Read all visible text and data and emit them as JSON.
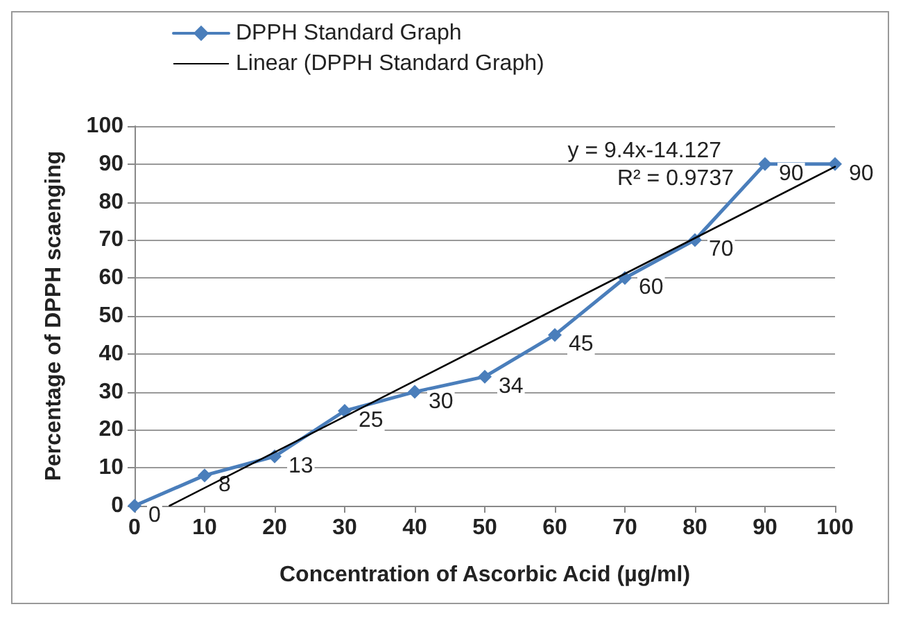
{
  "chart_data": {
    "type": "line",
    "xlabel": "Concentration of Ascorbic Acid (µg/ml)",
    "ylabel": "Percentage of DPPH scaenging",
    "x": [
      0,
      10,
      20,
      30,
      40,
      50,
      60,
      70,
      80,
      90,
      100
    ],
    "series": [
      {
        "name": "DPPH Standard Graph",
        "color": "#4a7ebb",
        "values": [
          0,
          8,
          13,
          25,
          30,
          34,
          45,
          60,
          70,
          90,
          90
        ],
        "value_labels": [
          "0",
          "8",
          "13",
          "25",
          "30",
          "34",
          "45",
          "60",
          "70",
          "90",
          "90"
        ]
      },
      {
        "name": "Linear (DPPH Standard Graph)",
        "color": "#000000",
        "marker": "none",
        "x": [
          5,
          100
        ],
        "values": [
          0,
          89.3
        ]
      }
    ],
    "annotations": [
      "y = 9.4x-14.127",
      "R² = 0.9737"
    ],
    "xlim": [
      0,
      100
    ],
    "xticks": [
      0,
      10,
      20,
      30,
      40,
      50,
      60,
      70,
      80,
      90,
      100
    ],
    "ylim": [
      0,
      100
    ],
    "yticks": [
      0,
      10,
      20,
      30,
      40,
      50,
      60,
      70,
      80,
      90,
      100
    ],
    "grid": "y",
    "legend": "top left",
    "marker": "diamond",
    "line_style": "solid"
  }
}
